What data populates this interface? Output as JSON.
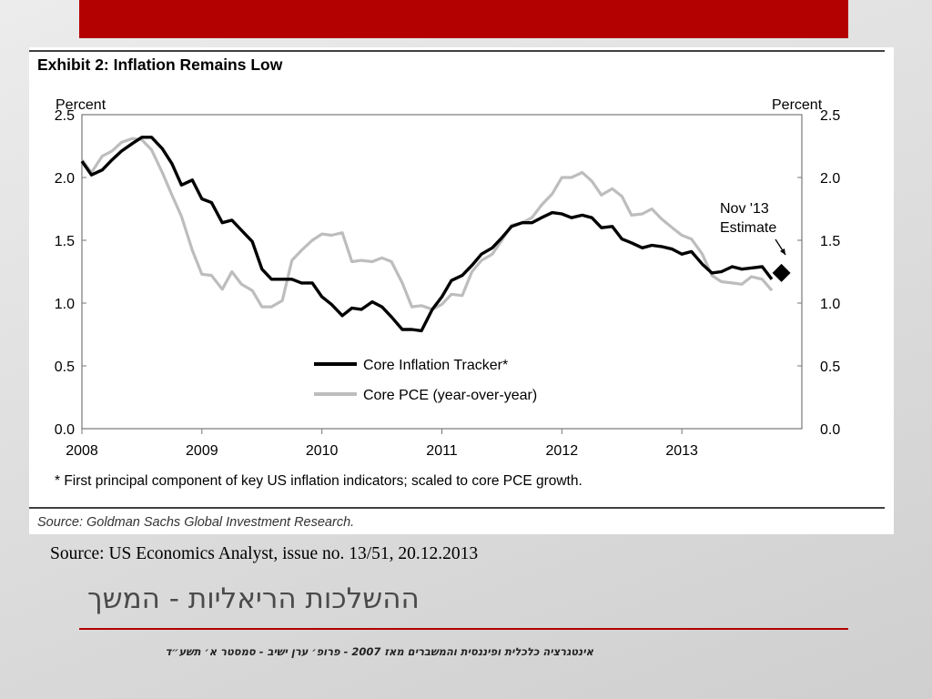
{
  "slide": {
    "source_text": "Source: US Economics Analyst, issue no. 13/51, 20.12.2013",
    "title": "ההשלכות הריאליות - המשך",
    "footer": "אינטגרציה כלכלית ופיננסית והמשברים מאז 2007 - פרופ׳ ערן ישיב - סמסטר א׳ תשע״ד",
    "accent_color": "#b30000"
  },
  "exhibit": {
    "title": "Exhibit 2: Inflation Remains Low",
    "footnote": "* First principal component of key US inflation indicators; scaled to core PCE growth.",
    "source": "Source: Goldman Sachs Global Investment Research."
  },
  "chart_data": {
    "type": "line",
    "xlabel": "",
    "ylabel_left": "Percent",
    "ylabel_right": "Percent",
    "x_ticks": [
      "2008",
      "2009",
      "2010",
      "2011",
      "2012",
      "2013"
    ],
    "y_ticks": [
      "0.0",
      "0.5",
      "1.0",
      "1.5",
      "2.0",
      "2.5"
    ],
    "xlim": [
      2008.0,
      2014.0
    ],
    "ylim": [
      0,
      2.5
    ],
    "grid": false,
    "legend_placement": "lower-center",
    "annotation": {
      "text_line1": "Nov '13",
      "text_line2": "Estimate",
      "x": 2013.83,
      "y": 1.24
    },
    "series": [
      {
        "name": "Core Inflation Tracker*",
        "color": "#000000",
        "x": [
          2008.0,
          2008.08,
          2008.17,
          2008.25,
          2008.33,
          2008.42,
          2008.5,
          2008.58,
          2008.67,
          2008.75,
          2008.83,
          2008.92,
          2009.0,
          2009.08,
          2009.17,
          2009.25,
          2009.33,
          2009.42,
          2009.5,
          2009.58,
          2009.67,
          2009.75,
          2009.83,
          2009.92,
          2010.0,
          2010.08,
          2010.17,
          2010.25,
          2010.33,
          2010.42,
          2010.5,
          2010.58,
          2010.67,
          2010.75,
          2010.83,
          2010.92,
          2011.0,
          2011.08,
          2011.17,
          2011.25,
          2011.33,
          2011.42,
          2011.5,
          2011.58,
          2011.67,
          2011.75,
          2011.83,
          2011.92,
          2012.0,
          2012.08,
          2012.17,
          2012.25,
          2012.33,
          2012.42,
          2012.5,
          2012.58,
          2012.67,
          2012.75,
          2012.83,
          2012.92,
          2013.0,
          2013.08,
          2013.17,
          2013.25,
          2013.33,
          2013.42,
          2013.5,
          2013.58,
          2013.67,
          2013.75
        ],
        "y": [
          2.13,
          2.02,
          2.06,
          2.14,
          2.21,
          2.27,
          2.32,
          2.32,
          2.23,
          2.11,
          1.94,
          1.98,
          1.83,
          1.8,
          1.64,
          1.66,
          1.58,
          1.49,
          1.27,
          1.19,
          1.19,
          1.19,
          1.16,
          1.16,
          1.05,
          0.99,
          0.9,
          0.96,
          0.95,
          1.01,
          0.97,
          0.89,
          0.79,
          0.79,
          0.78,
          0.95,
          1.05,
          1.18,
          1.22,
          1.3,
          1.39,
          1.44,
          1.52,
          1.61,
          1.64,
          1.64,
          1.68,
          1.72,
          1.71,
          1.68,
          1.7,
          1.68,
          1.6,
          1.61,
          1.51,
          1.48,
          1.44,
          1.46,
          1.45,
          1.43,
          1.39,
          1.41,
          1.31,
          1.24,
          1.25,
          1.29,
          1.27,
          1.28,
          1.29,
          1.19
        ]
      },
      {
        "name": "Core PCE (year-over-year)",
        "color": "#bdbdbd",
        "x": [
          2008.0,
          2008.08,
          2008.17,
          2008.25,
          2008.33,
          2008.42,
          2008.5,
          2008.58,
          2008.67,
          2008.75,
          2008.83,
          2008.92,
          2009.0,
          2009.08,
          2009.17,
          2009.25,
          2009.33,
          2009.42,
          2009.5,
          2009.58,
          2009.67,
          2009.75,
          2009.83,
          2009.92,
          2010.0,
          2010.08,
          2010.17,
          2010.25,
          2010.33,
          2010.42,
          2010.5,
          2010.58,
          2010.67,
          2010.75,
          2010.83,
          2010.92,
          2011.0,
          2011.08,
          2011.17,
          2011.25,
          2011.33,
          2011.42,
          2011.5,
          2011.58,
          2011.67,
          2011.75,
          2011.83,
          2011.92,
          2012.0,
          2012.08,
          2012.17,
          2012.25,
          2012.33,
          2012.42,
          2012.5,
          2012.58,
          2012.67,
          2012.75,
          2012.83,
          2012.92,
          2013.0,
          2013.08,
          2013.17,
          2013.25,
          2013.33,
          2013.42,
          2013.5,
          2013.58,
          2013.67,
          2013.75
        ],
        "y": [
          2.14,
          2.04,
          2.17,
          2.21,
          2.28,
          2.31,
          2.3,
          2.22,
          2.04,
          1.86,
          1.69,
          1.42,
          1.23,
          1.22,
          1.11,
          1.25,
          1.15,
          1.1,
          0.97,
          0.97,
          1.02,
          1.34,
          1.42,
          1.5,
          1.55,
          1.54,
          1.56,
          1.33,
          1.34,
          1.33,
          1.36,
          1.33,
          1.16,
          0.97,
          0.98,
          0.95,
          0.99,
          1.07,
          1.06,
          1.25,
          1.34,
          1.39,
          1.5,
          1.62,
          1.64,
          1.68,
          1.78,
          1.87,
          2.0,
          2.0,
          2.04,
          1.97,
          1.86,
          1.91,
          1.85,
          1.7,
          1.71,
          1.75,
          1.67,
          1.6,
          1.54,
          1.51,
          1.39,
          1.22,
          1.17,
          1.16,
          1.15,
          1.21,
          1.19,
          1.1
        ]
      }
    ],
    "estimate_point": {
      "x": 2013.83,
      "y": 1.24
    }
  }
}
